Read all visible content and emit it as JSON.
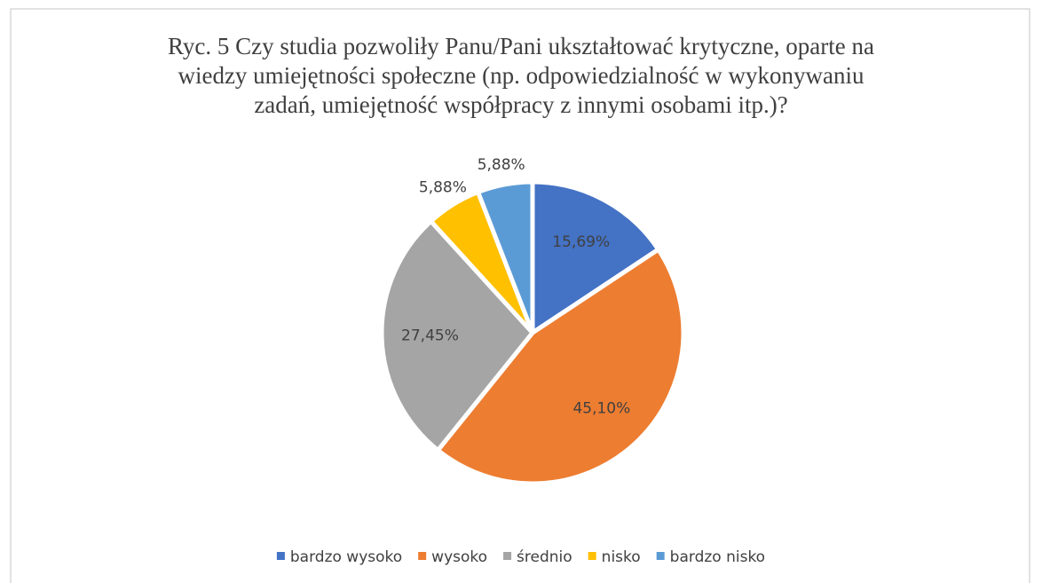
{
  "chart_data": {
    "type": "pie",
    "title": "Ryc. 5 Czy studia pozwoliły Panu/Pani ukształtować krytyczne, oparte na wiedzy umiejętności społeczne (np. odpowiedzialność w wykonywaniu zadań, umiejętność współpracy z innymi osobami itp.)?",
    "categories": [
      "bardzo wysoko",
      "wysoko",
      "średnio",
      "nisko",
      "bardzo nisko"
    ],
    "values": [
      15.69,
      45.1,
      27.45,
      5.88,
      5.88
    ],
    "value_labels": [
      "15,69%",
      "45,10%",
      "27,45%",
      "5,88%",
      "5,88%"
    ],
    "colors": [
      "#4472c4",
      "#ed7d31",
      "#a5a5a5",
      "#ffc000",
      "#5b9bd5"
    ],
    "legend": "bottom"
  }
}
